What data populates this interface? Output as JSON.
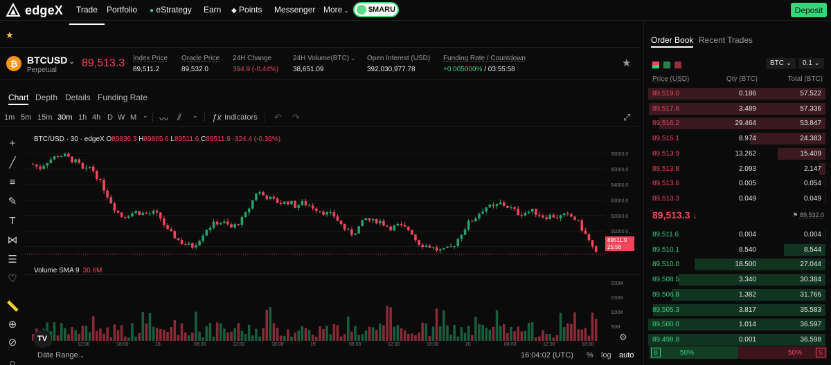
{
  "brand": {
    "name": "edgeX"
  },
  "nav": {
    "items": [
      "Trade",
      "Portfolio",
      "eStrategy",
      "Earn",
      "Points",
      "Messenger",
      "More"
    ],
    "promo": "$MARU",
    "deposit": "Deposit"
  },
  "ticker": {
    "symbol": "BTCUSD",
    "type": "Perpetual",
    "last_price": "89,513.3",
    "stats": [
      {
        "label": "Index Price",
        "value": "89,511.2"
      },
      {
        "label": "Oracle Price",
        "value": "89,532.0"
      },
      {
        "label": "24H Change",
        "value": "394.9 (-0.44%)"
      },
      {
        "label": "24H Volume(BTC)",
        "value": "38,651.09"
      },
      {
        "label": "Open Interest (USD)",
        "value": "392,030,977.78"
      },
      {
        "label": "Funding Rate / Countdown",
        "value_rate": "+0.005000%",
        "value_count": " / 03:55:58"
      }
    ]
  },
  "chart_tabs": [
    "Chart",
    "Depth",
    "Details",
    "Funding Rate"
  ],
  "timeframes": [
    "1m",
    "5m",
    "15m",
    "30m",
    "1h",
    "4h",
    "D",
    "W",
    "M"
  ],
  "indicators_label": "Indicators",
  "chart": {
    "legend_title": "BTC/USD · 30 · edgeX",
    "ohlc": {
      "o_label": "O",
      "o": "89836.3",
      "h_label": "H",
      "h": "89865.6",
      "l_label": "L",
      "l": "89511.6",
      "c_label": "C",
      "c": "89511.9",
      "chg": "-324.4 (-0.36%)"
    },
    "price_tag": "89511.9",
    "price_tag_time": "25:58",
    "volume_label": "Volume SMA 9",
    "volume_value": "30.6M",
    "price_ticks": [
      "96000.0",
      "95000.0",
      "94000.0",
      "93000.0",
      "92000.0",
      "91000.0",
      "90000.0"
    ],
    "volume_ticks": [
      "200M",
      "150M",
      "100M",
      "50M"
    ],
    "time_ticks": [
      "06:00",
      "12:00",
      "18:00",
      "18",
      "06:00",
      "12:00",
      "18:00",
      "19",
      "06:00",
      "12:00",
      "18:00",
      "20",
      "06:00",
      "12:00",
      "18:00"
    ],
    "date_range": "Date Range",
    "clock": "16:04:02 (UTC)",
    "pct": "%",
    "log": "log",
    "auto": "auto",
    "colors": {
      "up": "#26a269",
      "down": "#f2455c"
    }
  },
  "chart_data": {
    "type": "candlestick",
    "ylim": [
      89000,
      96500
    ],
    "y_ticks": [
      96000,
      95000,
      94000,
      93000,
      92000,
      91000,
      90000
    ],
    "x_ticks": [
      "06:00",
      "12:00",
      "18:00",
      "18",
      "06:00",
      "12:00",
      "18:00",
      "19",
      "06:00",
      "12:00",
      "18:00",
      "20",
      "06:00",
      "12:00",
      "18:00"
    ],
    "close_path": [
      95300,
      95050,
      95450,
      95700,
      95900,
      95850,
      95600,
      95400,
      94800,
      95200,
      94500,
      93800,
      93000,
      92300,
      91900,
      92100,
      92250,
      92150,
      92100,
      92200,
      91800,
      91000,
      90700,
      90300,
      90100,
      90000,
      90500,
      91100,
      91400,
      91600,
      91500,
      91200,
      91500,
      91900,
      92700,
      93600,
      93300,
      93100,
      92900,
      92800,
      92900,
      92600,
      92800,
      92700,
      92500,
      92300,
      92100,
      92000,
      91500,
      91000,
      90800,
      91300,
      91800,
      91600,
      91700,
      91400,
      91200,
      91350,
      91200,
      91050,
      90300,
      90100,
      90000,
      89800,
      89700,
      89850,
      90200,
      90900,
      91500,
      91800,
      92300,
      92600,
      92500,
      92800,
      92600,
      92400,
      92100,
      92200,
      92300,
      92100,
      91900,
      92000,
      91900,
      92000,
      91950,
      91700,
      91000,
      90300,
      89511.9
    ],
    "volume_ylim": [
      0,
      200
    ],
    "volume_ticks": [
      200,
      150,
      100,
      50
    ]
  },
  "orderbook": {
    "tabs": [
      "Order Book",
      "Recent Trades"
    ],
    "unit": "BTC",
    "step": "0.1",
    "headers": [
      "Price (USD)",
      "Qty (BTC)",
      "Total (BTC)"
    ],
    "asks": [
      {
        "price": "89,519.0",
        "qty": "0.186",
        "total": "57.522",
        "depth": 1.0
      },
      {
        "price": "89,517.6",
        "qty": "3.489",
        "total": "57.336",
        "depth": 0.997
      },
      {
        "price": "89,516.2",
        "qty": "29.464",
        "total": "53.847",
        "depth": 0.936
      },
      {
        "price": "89,515.1",
        "qty": "8.974",
        "total": "24.383",
        "depth": 0.424
      },
      {
        "price": "89,513.9",
        "qty": "13.262",
        "total": "15.409",
        "depth": 0.268
      },
      {
        "price": "89,513.8",
        "qty": "2.093",
        "total": "2.147",
        "depth": 0.037
      },
      {
        "price": "89,513.6",
        "qty": "0.005",
        "total": "0.054",
        "depth": 0.002
      },
      {
        "price": "89,513.3",
        "qty": "0.049",
        "total": "0.049",
        "depth": 0.001
      }
    ],
    "mid_price": "89,513.3",
    "mid_arrow": "↓",
    "mark_price": "89,532.0",
    "bids": [
      {
        "price": "89,511.6",
        "qty": "0.004",
        "total": "0.004",
        "depth": 0.001
      },
      {
        "price": "89,510.1",
        "qty": "8.540",
        "total": "8.544",
        "depth": 0.233
      },
      {
        "price": "89,510.0",
        "qty": "18.500",
        "total": "27.044",
        "depth": 0.739
      },
      {
        "price": "89,508.5",
        "qty": "3.340",
        "total": "30.384",
        "depth": 0.83
      },
      {
        "price": "89,506.8",
        "qty": "1.382",
        "total": "31.766",
        "depth": 0.868
      },
      {
        "price": "89,505.3",
        "qty": "3.817",
        "total": "35.583",
        "depth": 0.972
      },
      {
        "price": "89,500.0",
        "qty": "1.014",
        "total": "36.597",
        "depth": 1.0
      },
      {
        "price": "89,498.8",
        "qty": "0.001",
        "total": "36.598",
        "depth": 1.0
      }
    ],
    "ratio": {
      "buy_label": "B",
      "buy": "50%",
      "sell": "50%",
      "sell_label": "S",
      "buy_fraction": 0.5
    }
  }
}
